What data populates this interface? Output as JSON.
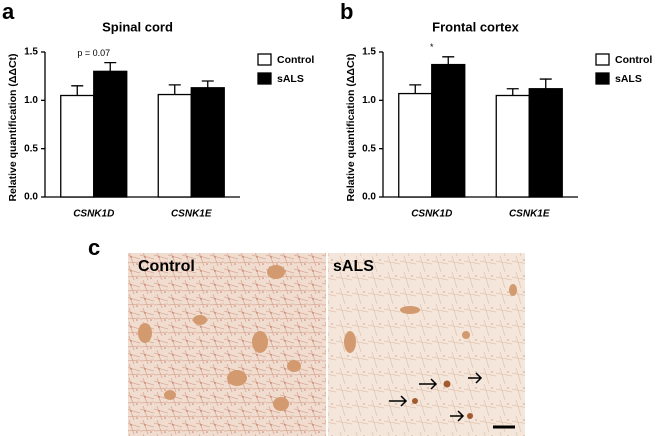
{
  "chart_data": [
    {
      "type": "bar",
      "panel": "a",
      "title": "Spinal cord",
      "ylabel": "Relative quantification (ΔΔCt)",
      "categories": [
        "CSNK1D",
        "CSNK1E"
      ],
      "series": [
        {
          "name": "Control",
          "color": "#ffffff",
          "values": [
            1.05,
            1.06
          ],
          "errors": [
            0.1,
            0.1
          ]
        },
        {
          "name": "sALS",
          "color": "#000000",
          "values": [
            1.3,
            1.13
          ],
          "errors": [
            0.09,
            0.07
          ]
        }
      ],
      "annotations": [
        {
          "text": "p = 0.07",
          "x": "CSNK1D"
        }
      ],
      "ylim": [
        0,
        1.5
      ],
      "yticks": [
        {
          "value": 0,
          "label": "0.0"
        },
        {
          "value": 0.5,
          "label": "0.5"
        },
        {
          "value": 1,
          "label": "1.0"
        },
        {
          "value": 1.5,
          "label": "1.5"
        }
      ]
    },
    {
      "type": "bar",
      "panel": "b",
      "title": "Frontal cortex",
      "ylabel": "Relative quantification (ΔΔCt)",
      "categories": [
        "CSNK1D",
        "CSNK1E"
      ],
      "series": [
        {
          "name": "Control",
          "color": "#ffffff",
          "values": [
            1.07,
            1.05
          ],
          "errors": [
            0.09,
            0.07
          ]
        },
        {
          "name": "sALS",
          "color": "#000000",
          "values": [
            1.37,
            1.12
          ],
          "errors": [
            0.08,
            0.1
          ]
        }
      ],
      "annotations": [
        {
          "text": "*",
          "x": "CSNK1D"
        }
      ],
      "ylim": [
        0,
        1.5
      ],
      "yticks": [
        {
          "value": 0,
          "label": "0.0"
        },
        {
          "value": 0.5,
          "label": "0.5"
        },
        {
          "value": 1,
          "label": "1.0"
        },
        {
          "value": 1.5,
          "label": "1.5"
        }
      ]
    }
  ],
  "micrograph": {
    "panel": "c",
    "labels": [
      "Control",
      "sALS"
    ]
  }
}
